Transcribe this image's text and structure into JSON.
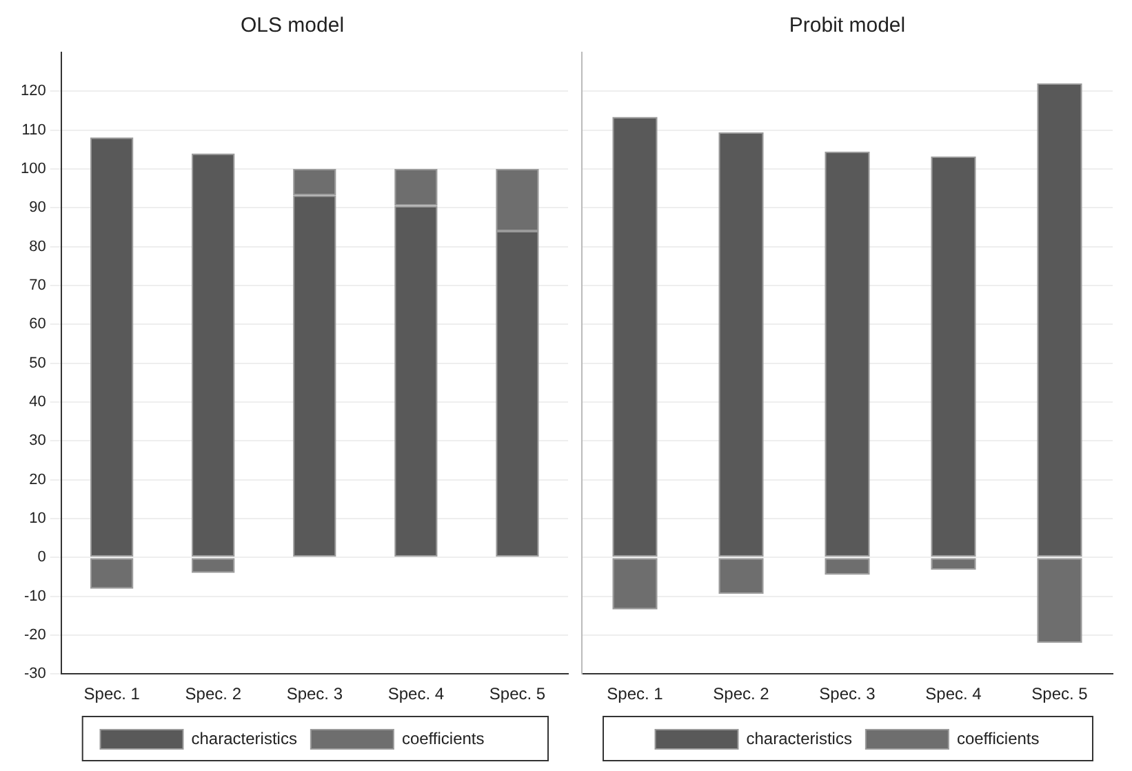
{
  "chart_data": [
    {
      "type": "bar",
      "title": "OLS model",
      "categories": [
        "Spec. 1",
        "Spec. 2",
        "Spec. 3",
        "Spec. 4",
        "Spec. 5"
      ],
      "stacked": true,
      "series": [
        {
          "name": "characteristics",
          "color": "#595959",
          "values": [
            108.1,
            104,
            93.2,
            90.5,
            84
          ]
        },
        {
          "name": "coefficients",
          "color": "#6e6e6e",
          "values": [
            -8.1,
            -4,
            6.8,
            9.5,
            16
          ]
        }
      ],
      "ylim": [
        -30,
        130
      ],
      "yticks": [
        -30,
        -20,
        -10,
        0,
        10,
        20,
        30,
        40,
        50,
        60,
        70,
        80,
        90,
        100,
        110,
        120
      ],
      "grid": "y",
      "legend": "bottom"
    },
    {
      "type": "bar",
      "title": "Probit model",
      "categories": [
        "Spec. 1",
        "Spec. 2",
        "Spec. 3",
        "Spec. 4",
        "Spec. 5"
      ],
      "stacked": true,
      "series": [
        {
          "name": "characteristics",
          "color": "#595959",
          "values": [
            113.4,
            109.4,
            104.5,
            103.2,
            122
          ]
        },
        {
          "name": "coefficients",
          "color": "#6e6e6e",
          "values": [
            -13.4,
            -9.4,
            -4.5,
            -3.2,
            -22
          ]
        }
      ],
      "ylim": [
        -30,
        130
      ],
      "yticks": [
        -30,
        -20,
        -10,
        0,
        10,
        20,
        30,
        40,
        50,
        60,
        70,
        80,
        90,
        100,
        110,
        120
      ],
      "grid": "y",
      "legend": "bottom",
      "tick_labels": "x"
    }
  ]
}
